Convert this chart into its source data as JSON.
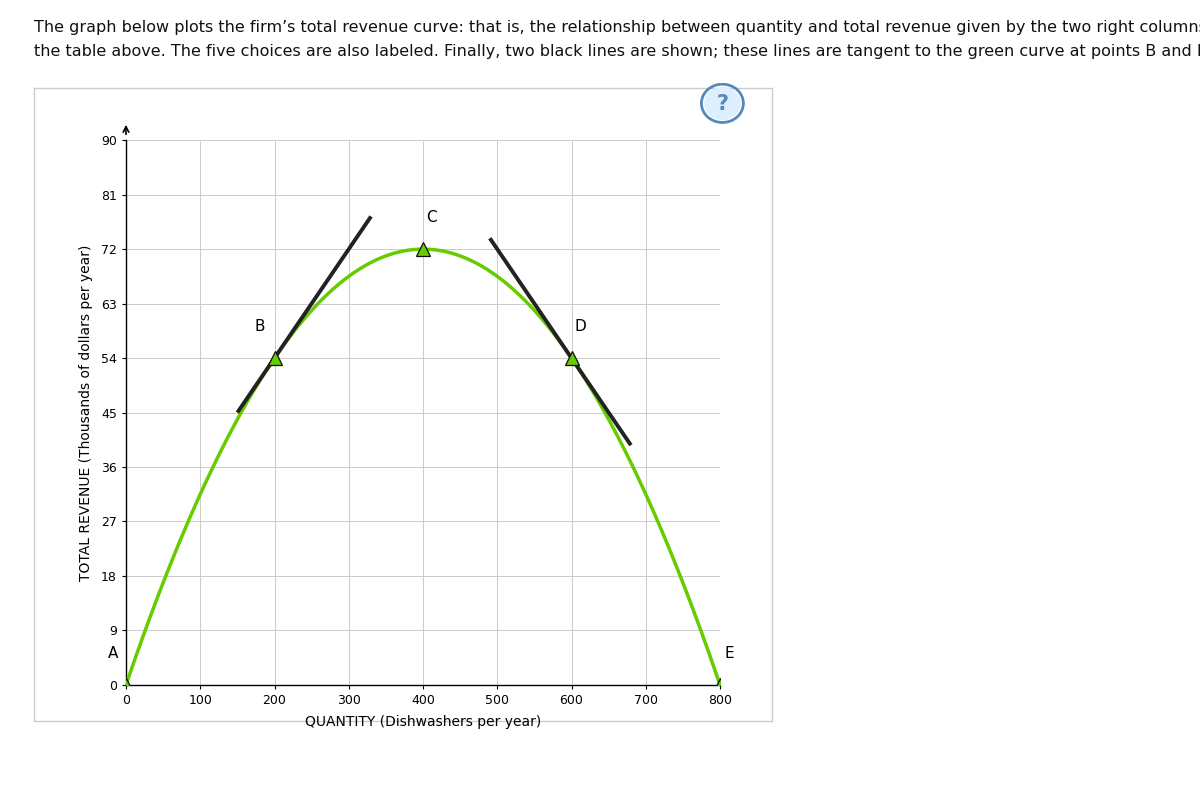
{
  "points": {
    "A": [
      0,
      0
    ],
    "B": [
      200,
      54
    ],
    "C": [
      400,
      72
    ],
    "D": [
      600,
      54
    ],
    "E": [
      800,
      0
    ]
  },
  "curve_color": "#66cc00",
  "tangent_color": "#222222",
  "marker_color": "#66cc00",
  "marker_edge_color": "#111111",
  "background_color": "#ffffff",
  "grid_color": "#cccccc",
  "xlabel": "QUANTITY (Dishwashers per year)",
  "ylabel": "TOTAL REVENUE (Thousands of dollars per year)",
  "xlim": [
    0,
    800
  ],
  "ylim": [
    0,
    90
  ],
  "xticks": [
    0,
    100,
    200,
    300,
    400,
    500,
    600,
    700,
    800
  ],
  "yticks": [
    0,
    9,
    18,
    27,
    36,
    45,
    54,
    63,
    72,
    81,
    90
  ],
  "title_line1": "The graph below plots the firm’s total revenue curve: that is, the relationship between quantity and total revenue given by the two right columns in",
  "title_line2": "the table above. The five choices are also labeled. Finally, two black lines are shown; these lines are tangent to the green curve at points B and D.",
  "curve_linewidth": 2.5,
  "tangent_linewidth": 2.8,
  "marker_size": 10,
  "label_fontsize": 11,
  "axis_label_fontsize": 10,
  "title_fontsize": 11.5,
  "panel_bg": "#f8f8f8",
  "tan_B_x1": 150,
  "tan_B_x2": 330,
  "tan_D_x1": 490,
  "tan_D_x2": 680,
  "separator_color": "#c8b87a",
  "panel_border_color": "#cccccc",
  "qmark_color": "#5588bb",
  "qmark_bg": "#ddeeff"
}
